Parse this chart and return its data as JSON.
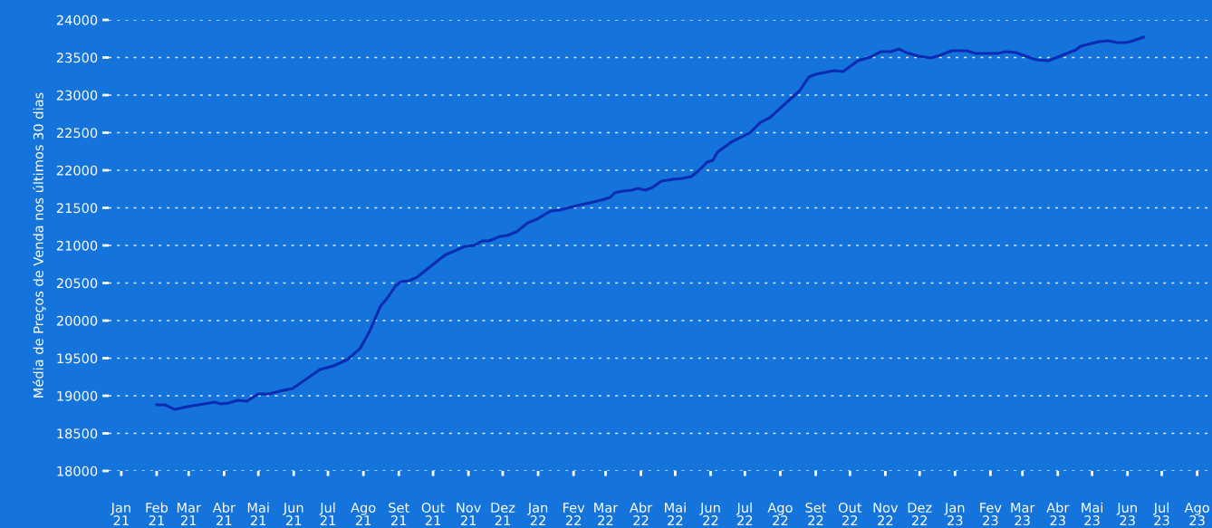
{
  "chart_data": {
    "type": "line",
    "ylabel": "Média de Preços de Venda nos últimos 30 dias",
    "x": [
      "2021-02-01",
      "2021-02-08",
      "2021-02-17",
      "2021-02-28",
      "2021-03-24",
      "2021-03-29",
      "2021-04-05",
      "2021-04-13",
      "2021-04-21",
      "2021-05-01",
      "2021-05-10",
      "2021-05-23",
      "2021-05-31",
      "2021-06-08",
      "2021-06-24",
      "2021-07-06",
      "2021-07-18",
      "2021-07-29",
      "2021-08-06",
      "2021-08-16",
      "2021-08-22",
      "2021-08-29",
      "2021-09-03",
      "2021-09-10",
      "2021-09-17",
      "2021-09-30",
      "2021-10-11",
      "2021-10-29",
      "2021-11-06",
      "2021-11-13",
      "2021-11-19",
      "2021-11-29",
      "2021-12-05",
      "2021-12-13",
      "2021-12-23",
      "2021-12-31",
      "2022-01-12",
      "2022-01-20",
      "2022-02-04",
      "2022-02-15",
      "2022-02-25",
      "2022-03-05",
      "2022-03-09",
      "2022-03-16",
      "2022-03-24",
      "2022-03-29",
      "2022-04-05",
      "2022-04-11",
      "2022-04-19",
      "2022-04-29",
      "2022-05-07",
      "2022-05-15",
      "2022-05-22",
      "2022-05-29",
      "2022-06-03",
      "2022-06-07",
      "2022-06-19",
      "2022-07-05",
      "2022-07-15",
      "2022-07-23",
      "2022-08-03",
      "2022-08-11",
      "2022-08-18",
      "2022-08-26",
      "2022-09-01",
      "2022-09-17",
      "2022-09-25",
      "2022-10-08",
      "2022-10-19",
      "2022-10-28",
      "2022-11-06",
      "2022-11-13",
      "2022-11-19",
      "2022-11-30",
      "2022-12-11",
      "2022-12-19",
      "2022-12-29",
      "2023-01-11",
      "2023-01-19",
      "2023-02-07",
      "2023-02-15",
      "2023-02-23",
      "2023-03-13",
      "2023-03-24",
      "2023-04-03",
      "2023-04-17",
      "2023-04-21",
      "2023-05-07",
      "2023-05-15",
      "2023-05-23",
      "2023-05-31",
      "2023-06-06",
      "2023-06-15"
    ],
    "series": [
      {
        "color": "#0b2bb3",
        "values": [
          18880,
          18880,
          18819,
          18856,
          18916,
          18892,
          18904,
          18940,
          18928,
          19024,
          19024,
          19072,
          19096,
          19181,
          19349,
          19398,
          19482,
          19627,
          19843,
          20193,
          20301,
          20458,
          20518,
          20530,
          20578,
          20735,
          20868,
          20988,
          21000,
          21060,
          21060,
          21121,
          21133,
          21181,
          21301,
          21349,
          21458,
          21470,
          21530,
          21566,
          21602,
          21639,
          21699,
          21723,
          21735,
          21759,
          21735,
          21771,
          21855,
          21880,
          21892,
          21916,
          22000,
          22108,
          22133,
          22241,
          22374,
          22494,
          22639,
          22699,
          22855,
          22964,
          23060,
          23241,
          23277,
          23325,
          23313,
          23458,
          23506,
          23578,
          23578,
          23614,
          23566,
          23518,
          23494,
          23530,
          23590,
          23590,
          23554,
          23554,
          23578,
          23566,
          23470,
          23458,
          23518,
          23602,
          23651,
          23711,
          23723,
          23699,
          23699,
          23723,
          23771
        ]
      }
    ],
    "xlim": [
      "2020-12-21",
      "2023-08-14"
    ],
    "xticks": [
      {
        "value": "2021-01-01",
        "label": "Jan\n21"
      },
      {
        "value": "2021-02-01",
        "label": "Feb\n21"
      },
      {
        "value": "2021-03-01",
        "label": "Mar\n21"
      },
      {
        "value": "2021-04-01",
        "label": "Abr\n21"
      },
      {
        "value": "2021-05-01",
        "label": "Mai\n21"
      },
      {
        "value": "2021-06-01",
        "label": "Jun\n21"
      },
      {
        "value": "2021-07-01",
        "label": "Jul\n21"
      },
      {
        "value": "2021-08-01",
        "label": "Ago\n21"
      },
      {
        "value": "2021-09-01",
        "label": "Set\n21"
      },
      {
        "value": "2021-10-01",
        "label": "Out\n21"
      },
      {
        "value": "2021-11-01",
        "label": "Nov\n21"
      },
      {
        "value": "2021-12-01",
        "label": "Dez\n21"
      },
      {
        "value": "2022-01-01",
        "label": "Jan\n22"
      },
      {
        "value": "2022-02-01",
        "label": "Fev\n22"
      },
      {
        "value": "2022-03-01",
        "label": "Mar\n22"
      },
      {
        "value": "2022-04-01",
        "label": "Abr\n22"
      },
      {
        "value": "2022-05-01",
        "label": "Mai\n22"
      },
      {
        "value": "2022-06-01",
        "label": "Jun\n22"
      },
      {
        "value": "2022-07-01",
        "label": "Jul\n22"
      },
      {
        "value": "2022-08-01",
        "label": "Ago\n22"
      },
      {
        "value": "2022-09-01",
        "label": "Set\n22"
      },
      {
        "value": "2022-10-01",
        "label": "Out\n22"
      },
      {
        "value": "2022-11-01",
        "label": "Nov\n22"
      },
      {
        "value": "2022-12-01",
        "label": "Dez\n22"
      },
      {
        "value": "2023-01-01",
        "label": "Jan\n23"
      },
      {
        "value": "2023-02-01",
        "label": "Fev\n23"
      },
      {
        "value": "2023-03-01",
        "label": "Mar\n23"
      },
      {
        "value": "2023-04-01",
        "label": "Abr\n23"
      },
      {
        "value": "2023-05-01",
        "label": "Mai\n23"
      },
      {
        "value": "2023-06-01",
        "label": "Jun\n23"
      },
      {
        "value": "2023-07-01",
        "label": "Jul\n23"
      },
      {
        "value": "2023-08-01",
        "label": "Ago\n23"
      }
    ],
    "ylim": [
      18000,
      24000
    ],
    "yticks": [
      18000,
      18500,
      19000,
      19500,
      20000,
      20500,
      21000,
      21500,
      22000,
      22500,
      23000,
      23500,
      24000
    ],
    "grid": "y",
    "legend": false,
    "marker": "none",
    "line_style": "solid"
  }
}
